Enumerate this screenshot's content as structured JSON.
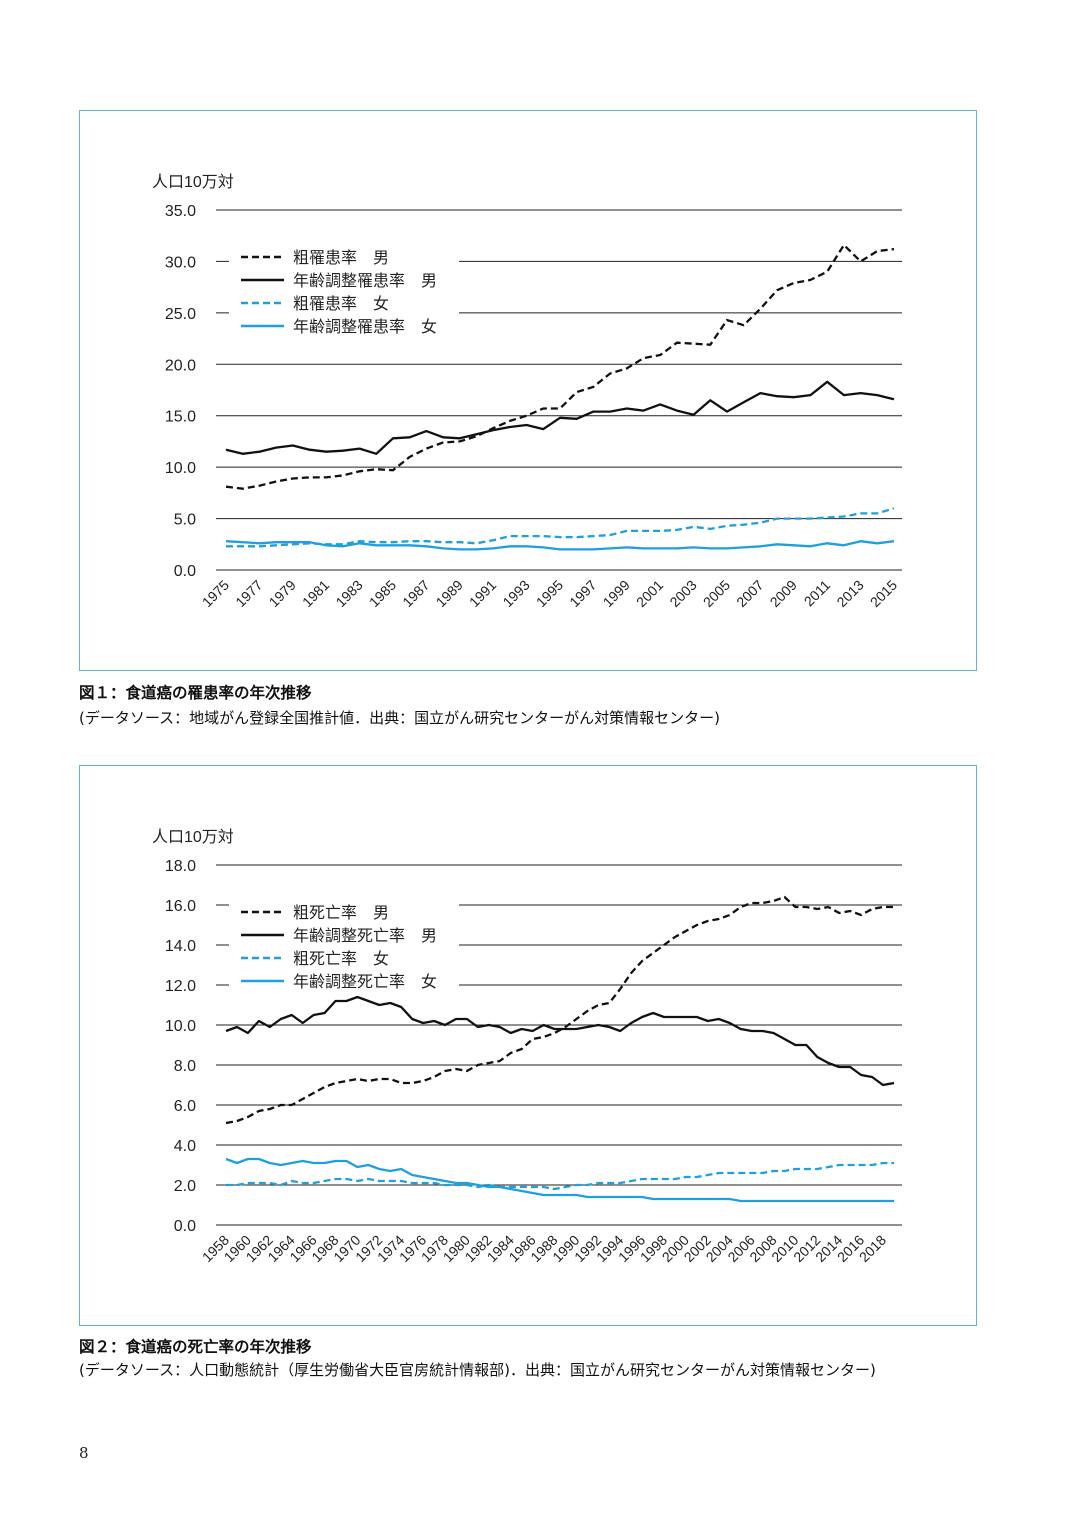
{
  "chart_data": [
    {
      "type": "line",
      "unit_label": "人口10万対",
      "ylim": [
        0,
        35
      ],
      "yticks": [
        "0.0",
        "5.0",
        "10.0",
        "15.0",
        "20.0",
        "25.0",
        "30.0",
        "35.0"
      ],
      "x": [
        1975,
        1976,
        1977,
        1978,
        1979,
        1980,
        1981,
        1982,
        1983,
        1984,
        1985,
        1986,
        1987,
        1988,
        1989,
        1990,
        1991,
        1992,
        1993,
        1994,
        1995,
        1996,
        1997,
        1998,
        1999,
        2000,
        2001,
        2002,
        2003,
        2004,
        2005,
        2006,
        2007,
        2008,
        2009,
        2010,
        2011,
        2012,
        2013,
        2014,
        2015
      ],
      "xtick_labels": [
        "1975",
        "1977",
        "1979",
        "1981",
        "1983",
        "1985",
        "1987",
        "1989",
        "1991",
        "1993",
        "1995",
        "1997",
        "1999",
        "2001",
        "2003",
        "2005",
        "2007",
        "2009",
        "2011",
        "2013",
        "2015"
      ],
      "legend": "top-left",
      "series": [
        {
          "name": "粗罹患率　男",
          "color": "#111111",
          "dashed": true,
          "values": [
            8.1,
            7.9,
            8.2,
            8.6,
            8.9,
            9.0,
            9.0,
            9.2,
            9.6,
            9.8,
            9.7,
            11.0,
            11.8,
            12.4,
            12.5,
            13.0,
            13.8,
            14.5,
            15.0,
            15.7,
            15.7,
            17.3,
            17.8,
            19.1,
            19.6,
            20.6,
            20.9,
            22.1,
            22.0,
            21.9,
            24.3,
            23.8,
            25.4,
            27.2,
            27.9,
            28.2,
            29.0,
            31.6,
            30.0,
            31.0,
            31.2
          ]
        },
        {
          "name": "年齢調整罹患率　男",
          "color": "#111111",
          "dashed": false,
          "values": [
            11.7,
            11.3,
            11.5,
            11.9,
            12.1,
            11.7,
            11.5,
            11.6,
            11.8,
            11.3,
            12.8,
            12.9,
            13.5,
            12.9,
            12.8,
            13.2,
            13.6,
            13.9,
            14.1,
            13.7,
            14.8,
            14.7,
            15.4,
            15.4,
            15.7,
            15.5,
            16.1,
            15.5,
            15.1,
            16.5,
            15.4,
            16.3,
            17.2,
            16.9,
            16.8,
            17.0,
            18.3,
            17.0,
            17.2,
            17.0,
            16.6
          ]
        },
        {
          "name": "粗罹患率　女",
          "color": "#1fa0dc",
          "dashed": true,
          "values": [
            2.3,
            2.3,
            2.3,
            2.4,
            2.5,
            2.6,
            2.5,
            2.5,
            2.8,
            2.7,
            2.7,
            2.8,
            2.8,
            2.7,
            2.7,
            2.6,
            2.9,
            3.3,
            3.3,
            3.3,
            3.2,
            3.2,
            3.3,
            3.4,
            3.8,
            3.8,
            3.8,
            3.9,
            4.2,
            4.0,
            4.3,
            4.4,
            4.6,
            5.0,
            5.0,
            5.0,
            5.1,
            5.2,
            5.5,
            5.5,
            6.0
          ]
        },
        {
          "name": "年齢調整罹患率　女",
          "color": "#1fa0dc",
          "dashed": false,
          "values": [
            2.8,
            2.7,
            2.6,
            2.7,
            2.7,
            2.7,
            2.4,
            2.3,
            2.6,
            2.4,
            2.4,
            2.4,
            2.3,
            2.1,
            2.0,
            2.0,
            2.1,
            2.3,
            2.3,
            2.2,
            2.0,
            2.0,
            2.0,
            2.1,
            2.2,
            2.1,
            2.1,
            2.1,
            2.2,
            2.1,
            2.1,
            2.2,
            2.3,
            2.5,
            2.4,
            2.3,
            2.6,
            2.4,
            2.8,
            2.6,
            2.8
          ]
        }
      ]
    },
    {
      "type": "line",
      "unit_label": "人口10万対",
      "ylim": [
        0,
        18
      ],
      "yticks": [
        "0.0",
        "2.0",
        "4.0",
        "6.0",
        "8.0",
        "10.0",
        "12.0",
        "14.0",
        "16.0",
        "18.0"
      ],
      "x": [
        1958,
        1959,
        1960,
        1961,
        1962,
        1963,
        1964,
        1965,
        1966,
        1967,
        1968,
        1969,
        1970,
        1971,
        1972,
        1973,
        1974,
        1975,
        1976,
        1977,
        1978,
        1979,
        1980,
        1981,
        1982,
        1983,
        1984,
        1985,
        1986,
        1987,
        1988,
        1989,
        1990,
        1991,
        1992,
        1993,
        1994,
        1995,
        1996,
        1997,
        1998,
        1999,
        2000,
        2001,
        2002,
        2003,
        2004,
        2005,
        2006,
        2007,
        2008,
        2009,
        2010,
        2011,
        2012,
        2013,
        2014,
        2015,
        2016,
        2017,
        2018,
        2019
      ],
      "xtick_labels": [
        "1958",
        "1960",
        "1962",
        "1964",
        "1966",
        "1968",
        "1970",
        "1972",
        "1974",
        "1976",
        "1978",
        "1980",
        "1982",
        "1984",
        "1986",
        "1988",
        "1990",
        "1992",
        "1994",
        "1996",
        "1998",
        "2000",
        "2002",
        "2004",
        "2006",
        "2008",
        "2010",
        "2012",
        "2014",
        "2016",
        "2018"
      ],
      "legend": "top-left",
      "series": [
        {
          "name": "粗死亡率　男",
          "color": "#111111",
          "dashed": true,
          "values": [
            5.1,
            5.2,
            5.4,
            5.7,
            5.8,
            6.0,
            6.0,
            6.3,
            6.6,
            6.9,
            7.1,
            7.2,
            7.3,
            7.2,
            7.3,
            7.3,
            7.1,
            7.1,
            7.2,
            7.4,
            7.7,
            7.8,
            7.7,
            8.0,
            8.1,
            8.2,
            8.6,
            8.8,
            9.3,
            9.4,
            9.6,
            9.9,
            10.3,
            10.7,
            11.0,
            11.1,
            11.8,
            12.6,
            13.2,
            13.6,
            14.0,
            14.4,
            14.7,
            15.0,
            15.2,
            15.3,
            15.5,
            15.9,
            16.1,
            16.1,
            16.2,
            16.4,
            15.9,
            15.9,
            15.8,
            15.9,
            15.6,
            15.7,
            15.5,
            15.8,
            15.9,
            15.9
          ]
        },
        {
          "name": "年齢調整死亡率　男",
          "color": "#111111",
          "dashed": false,
          "values": [
            9.7,
            9.9,
            9.6,
            10.2,
            9.9,
            10.3,
            10.5,
            10.1,
            10.5,
            10.6,
            11.2,
            11.2,
            11.4,
            11.2,
            11.0,
            11.1,
            10.9,
            10.3,
            10.1,
            10.2,
            10.0,
            10.3,
            10.3,
            9.9,
            10.0,
            9.9,
            9.6,
            9.8,
            9.7,
            10.0,
            9.8,
            9.8,
            9.8,
            9.9,
            10.0,
            9.9,
            9.7,
            10.1,
            10.4,
            10.6,
            10.4,
            10.4,
            10.4,
            10.4,
            10.2,
            10.3,
            10.1,
            9.8,
            9.7,
            9.7,
            9.6,
            9.3,
            9.0,
            9.0,
            8.4,
            8.1,
            7.9,
            7.9,
            7.5,
            7.4,
            7.0,
            7.1
          ]
        },
        {
          "name": "粗死亡率　女",
          "color": "#1fa0dc",
          "dashed": true,
          "values": [
            2.0,
            2.0,
            2.1,
            2.1,
            2.1,
            2.0,
            2.2,
            2.1,
            2.1,
            2.2,
            2.3,
            2.3,
            2.2,
            2.3,
            2.2,
            2.2,
            2.2,
            2.1,
            2.1,
            2.1,
            2.0,
            2.0,
            2.0,
            1.9,
            2.0,
            1.9,
            1.9,
            1.9,
            1.9,
            1.9,
            1.8,
            1.9,
            2.0,
            2.0,
            2.1,
            2.1,
            2.1,
            2.2,
            2.3,
            2.3,
            2.3,
            2.3,
            2.4,
            2.4,
            2.5,
            2.6,
            2.6,
            2.6,
            2.6,
            2.6,
            2.7,
            2.7,
            2.8,
            2.8,
            2.8,
            2.9,
            3.0,
            3.0,
            3.0,
            3.0,
            3.1,
            3.1
          ]
        },
        {
          "name": "年齢調整死亡率　女",
          "color": "#1fa0dc",
          "dashed": false,
          "values": [
            3.3,
            3.1,
            3.3,
            3.3,
            3.1,
            3.0,
            3.1,
            3.2,
            3.1,
            3.1,
            3.2,
            3.2,
            2.9,
            3.0,
            2.8,
            2.7,
            2.8,
            2.5,
            2.4,
            2.3,
            2.2,
            2.1,
            2.1,
            2.0,
            1.9,
            1.9,
            1.8,
            1.7,
            1.6,
            1.5,
            1.5,
            1.5,
            1.5,
            1.4,
            1.4,
            1.4,
            1.4,
            1.4,
            1.4,
            1.3,
            1.3,
            1.3,
            1.3,
            1.3,
            1.3,
            1.3,
            1.3,
            1.2,
            1.2,
            1.2,
            1.2,
            1.2,
            1.2,
            1.2,
            1.2,
            1.2,
            1.2,
            1.2,
            1.2,
            1.2,
            1.2,
            1.2
          ]
        }
      ]
    }
  ],
  "figure1": {
    "title": "図１：食道癌の罹患率の年次推移",
    "source": "(データソース：地域がん登録全国推計値．出典：国立がん研究センターがん対策情報センター)"
  },
  "figure2": {
    "title": "図２：食道癌の死亡率の年次推移",
    "source": "(データソース：人口動態統計（厚生労働省大臣官房統計情報部)．出典：国立がん研究センターがん対策情報センター)"
  },
  "page_number": "8"
}
